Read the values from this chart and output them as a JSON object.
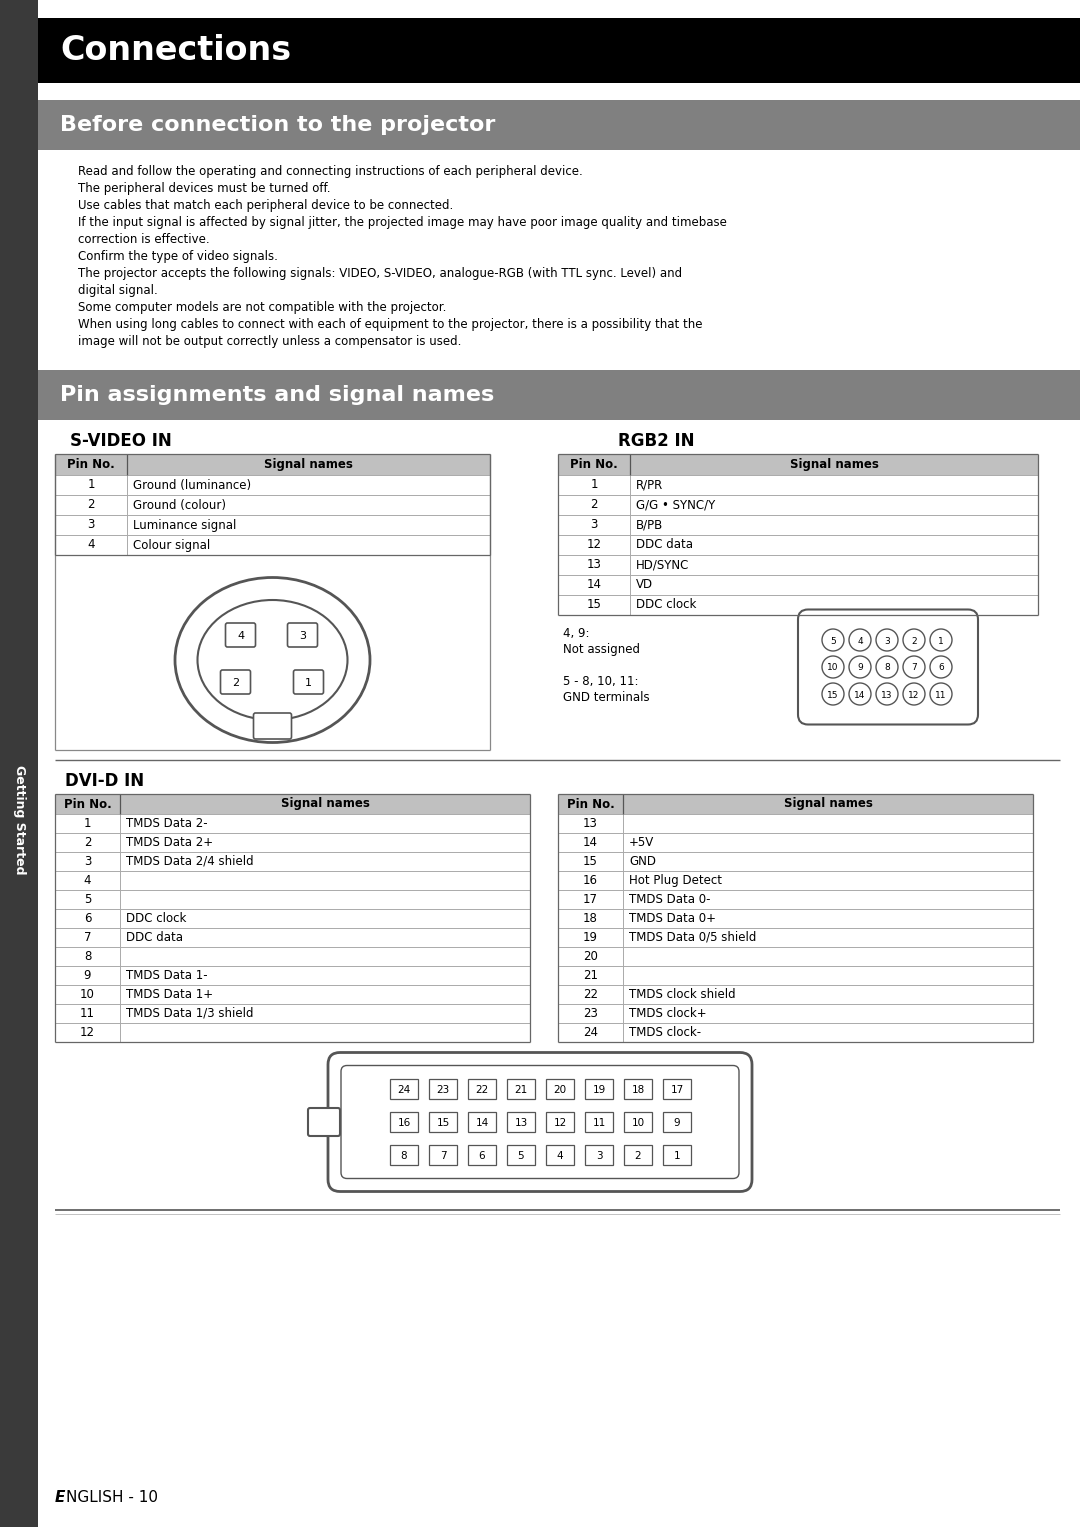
{
  "page_bg": "#ffffff",
  "sidebar_color": "#3a3a3a",
  "black_header_color": "#000000",
  "gray_header_color": "#808080",
  "table_header_color": "#c0c0c0",
  "title_connections": "Connections",
  "title_before": "Before connection to the projector",
  "title_pins": "Pin assignments and signal names",
  "before_lines": [
    "Read and follow the operating and connecting instructions of each peripheral device.",
    "The peripheral devices must be turned off.",
    "Use cables that match each peripheral device to be connected.",
    "If the input signal is affected by signal jitter, the projected image may have poor image quality and timebase",
    "correction is effective.",
    "Confirm the type of video signals.",
    "The projector accepts the following signals: VIDEO, S-VIDEO, analogue-RGB (with TTL sync. Level) and",
    "digital signal.",
    "Some computer models are not compatible with the projector.",
    "When using long cables to connect with each of equipment to the projector, there is a possibility that the",
    "image will not be output correctly unless a compensator is used."
  ],
  "svideo_title": "S-VIDEO IN",
  "svideo_pins": [
    [
      "1",
      "Ground (luminance)"
    ],
    [
      "2",
      "Ground (colour)"
    ],
    [
      "3",
      "Luminance signal"
    ],
    [
      "4",
      "Colour signal"
    ]
  ],
  "rgb2_title": "RGB2 IN",
  "rgb2_pins": [
    [
      "1",
      "R/PR"
    ],
    [
      "2",
      "G/G • SYNC/Y"
    ],
    [
      "3",
      "B/PB"
    ],
    [
      "12",
      "DDC data"
    ],
    [
      "13",
      "HD/SYNC"
    ],
    [
      "14",
      "VD"
    ],
    [
      "15",
      "DDC clock"
    ]
  ],
  "rgb2_note1": "4, 9:\nNot assigned",
  "rgb2_note2": "5 - 8, 10, 11:\nGND terminals",
  "dvid_title": "DVI-D IN",
  "dvid_left_pins": [
    [
      "1",
      "TMDS Data 2-"
    ],
    [
      "2",
      "TMDS Data 2+"
    ],
    [
      "3",
      "TMDS Data 2/4 shield"
    ],
    [
      "4",
      ""
    ],
    [
      "5",
      ""
    ],
    [
      "6",
      "DDC clock"
    ],
    [
      "7",
      "DDC data"
    ],
    [
      "8",
      ""
    ],
    [
      "9",
      "TMDS Data 1-"
    ],
    [
      "10",
      "TMDS Data 1+"
    ],
    [
      "11",
      "TMDS Data 1/3 shield"
    ],
    [
      "12",
      ""
    ]
  ],
  "dvid_right_pins": [
    [
      "13",
      ""
    ],
    [
      "14",
      "+5V"
    ],
    [
      "15",
      "GND"
    ],
    [
      "16",
      "Hot Plug Detect"
    ],
    [
      "17",
      "TMDS Data 0-"
    ],
    [
      "18",
      "TMDS Data 0+"
    ],
    [
      "19",
      "TMDS Data 0/5 shield"
    ],
    [
      "20",
      ""
    ],
    [
      "21",
      ""
    ],
    [
      "22",
      "TMDS clock shield"
    ],
    [
      "23",
      "TMDS clock+"
    ],
    [
      "24",
      "TMDS clock-"
    ]
  ],
  "sidebar_text": "Getting Started",
  "footer_italic": "E",
  "footer_normal": "NGLISH - 10"
}
